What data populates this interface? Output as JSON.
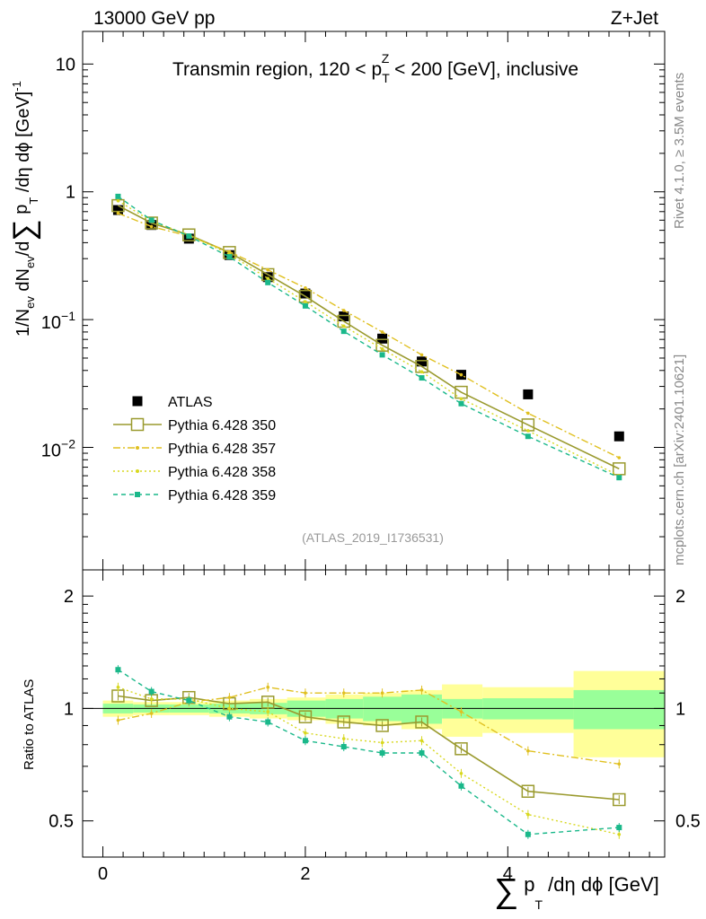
{
  "header": {
    "left": "13000 GeV pp",
    "right": "Z+Jet"
  },
  "side": {
    "rivet": "Rivet 4.1.0, ≥ 3.5M events",
    "mcplots": "mcplots.cern.ch [arXiv:2401.10621]"
  },
  "analysis_tag": "(ATLAS_2019_I1736531)",
  "title_parts": {
    "a": "Transmin region, 120 < p",
    "sup": "Z",
    "sub": "T",
    "b": " < 200 [GeV], inclusive"
  },
  "ylabel_main": {
    "a": "1/N",
    "a_sub": "ev",
    "b": " dN",
    "b_sub": "ev",
    "c": "/d",
    "sigma": "∑",
    "d": " p",
    "d_sub": "T",
    "e": " /dη dϕ  [GeV]",
    "e_sup": "-1"
  },
  "ylabel_ratio": "Ratio to ATLAS",
  "xlabel": {
    "sigma": "∑",
    "a": " p",
    "a_sub": "T",
    "b": " /dη dϕ [GeV]"
  },
  "main_ticks": [
    {
      "value": 10,
      "label": "10"
    },
    {
      "value": 1,
      "label": "1"
    },
    {
      "value": 0.1,
      "base": "10",
      "exp": "−1"
    },
    {
      "value": 0.01,
      "base": "10",
      "exp": "−2"
    }
  ],
  "ratio_ticks": [
    {
      "value": 0.5,
      "label": "0.5"
    },
    {
      "value": 1,
      "label": "1"
    },
    {
      "value": 2,
      "label": "2"
    }
  ],
  "x_ticks": [
    {
      "value": 0,
      "label": "0"
    },
    {
      "value": 2,
      "label": "2"
    },
    {
      "value": 4,
      "label": "4"
    }
  ],
  "colors": {
    "atlas": "#000000",
    "p350": "#9a9a2e",
    "p357": "#e0c020",
    "p358": "#d8d820",
    "p359": "#1ab88a",
    "band_outer": "#ffff99",
    "band_inner": "#99ff99"
  },
  "chart_data": {
    "type": "scatter",
    "xlabel": "∑ pT/dη dϕ [GeV]",
    "ylabel": "1/Nev dNev/d∑ pT /dη dϕ [GeV]^-1",
    "ratio_ylabel": "Ratio to ATLAS",
    "xlim": [
      -0.2,
      5.55
    ],
    "ylim": [
      0.0011,
      18
    ],
    "ratio_ylim": [
      0.4,
      2.35
    ],
    "yscale": "log",
    "ratio_yscale": "log",
    "x": [
      0.15,
      0.48,
      0.85,
      1.25,
      1.63,
      2.0,
      2.38,
      2.76,
      3.15,
      3.54,
      4.2,
      5.1
    ],
    "x_edges": [
      0.0,
      0.3,
      0.66,
      1.05,
      1.45,
      1.82,
      2.2,
      2.57,
      2.95,
      3.35,
      3.75,
      4.65,
      5.55
    ],
    "series": [
      {
        "name": "ATLAS",
        "style": "square-filled",
        "color": "#000000",
        "values": [
          0.72,
          0.55,
          0.43,
          0.32,
          0.215,
          0.16,
          0.106,
          0.071,
          0.047,
          0.037,
          0.026,
          0.0122
        ],
        "band_outer": [
          0.05,
          0.04,
          0.04,
          0.05,
          0.06,
          0.07,
          0.09,
          0.1,
          0.12,
          0.16,
          0.14,
          0.26
        ],
        "band_inner": [
          0.03,
          0.025,
          0.025,
          0.03,
          0.035,
          0.05,
          0.06,
          0.075,
          0.09,
          0.06,
          0.065,
          0.12
        ]
      },
      {
        "name": "Pythia 6.428 350",
        "style": "square-open-solid",
        "color": "#9a9a2e",
        "values": [
          0.78,
          0.57,
          0.46,
          0.335,
          0.225,
          0.152,
          0.097,
          0.063,
          0.043,
          0.027,
          0.015,
          0.0068
        ],
        "ratio": [
          1.08,
          1.05,
          1.07,
          1.03,
          1.04,
          0.95,
          0.92,
          0.9,
          0.92,
          0.78,
          0.6,
          0.57
        ]
      },
      {
        "name": "Pythia 6.428 357",
        "style": "dashdot",
        "color": "#e0c020",
        "values": [
          0.68,
          0.535,
          0.45,
          0.34,
          0.245,
          0.177,
          0.118,
          0.08,
          0.053,
          0.037,
          0.0185,
          0.0083
        ],
        "ratio": [
          0.93,
          0.97,
          1.04,
          1.07,
          1.14,
          1.1,
          1.1,
          1.1,
          1.12,
          0.98,
          0.77,
          0.71
        ]
      },
      {
        "name": "Pythia 6.428 358",
        "style": "dotted",
        "color": "#d8d820",
        "values": [
          0.85,
          0.59,
          0.46,
          0.325,
          0.21,
          0.138,
          0.089,
          0.059,
          0.039,
          0.024,
          0.0135,
          0.006
        ],
        "ratio": [
          1.14,
          1.06,
          1.06,
          1.0,
          0.98,
          0.86,
          0.83,
          0.81,
          0.82,
          0.67,
          0.52,
          0.46
        ]
      },
      {
        "name": "Pythia 6.428 359",
        "style": "dashed-square-small",
        "color": "#1ab88a",
        "values": [
          0.92,
          0.6,
          0.45,
          0.31,
          0.195,
          0.128,
          0.081,
          0.053,
          0.035,
          0.022,
          0.0122,
          0.0058
        ],
        "ratio": [
          1.27,
          1.11,
          1.05,
          0.95,
          0.92,
          0.82,
          0.79,
          0.76,
          0.76,
          0.62,
          0.46,
          0.48
        ]
      }
    ]
  }
}
